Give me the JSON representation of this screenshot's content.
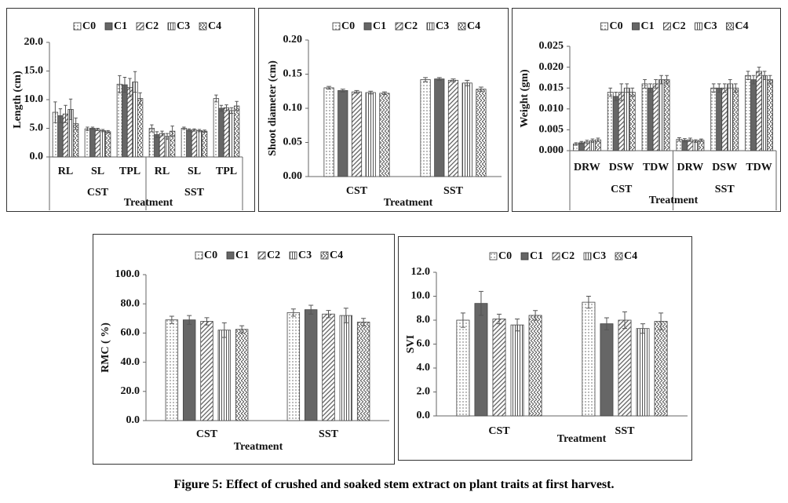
{
  "caption": "Figure 5: Effect of crushed and soaked stem extract on plant traits at first harvest.",
  "chart_data": [
    {
      "type": "bar",
      "ylabel": "Length (cm)",
      "xlabel": "Treatment",
      "categories": [
        "RL",
        "SL",
        "TPL",
        "RL",
        "SL",
        "TPL"
      ],
      "groups": [
        "CST",
        "SST"
      ],
      "ylim": [
        0,
        20
      ],
      "yticks": [
        {
          "value": 0,
          "label": "0.0"
        },
        {
          "value": 5,
          "label": "5.0"
        },
        {
          "value": 10,
          "label": "10.0"
        },
        {
          "value": 15,
          "label": "15.0"
        },
        {
          "value": 20,
          "label": "20.0"
        }
      ],
      "series": [
        {
          "name": "C0",
          "color": "#555555",
          "pattern": "dots",
          "values": [
            7.8,
            4.9,
            12.7,
            5.0,
            5.0,
            10.2
          ],
          "errors": [
            1.8,
            0.3,
            1.5,
            0.6,
            0.2,
            0.6
          ]
        },
        {
          "name": "C1",
          "color": "#666666",
          "pattern": "solid",
          "values": [
            7.2,
            5.0,
            12.6,
            3.9,
            4.7,
            8.5
          ],
          "errors": [
            1.2,
            0.2,
            1.3,
            0.5,
            0.2,
            0.5
          ]
        },
        {
          "name": "C2",
          "color": "#555555",
          "pattern": "diagonal",
          "values": [
            7.5,
            4.8,
            12.1,
            4.1,
            4.7,
            8.6
          ],
          "errors": [
            1.5,
            0.2,
            1.6,
            0.4,
            0.2,
            0.5
          ]
        },
        {
          "name": "C3",
          "color": "#555555",
          "pattern": "vertical",
          "values": [
            8.3,
            4.6,
            13.1,
            3.6,
            4.6,
            8.1
          ],
          "errors": [
            1.8,
            0.2,
            1.8,
            0.5,
            0.2,
            0.5
          ]
        },
        {
          "name": "C4",
          "color": "#555555",
          "pattern": "zigzag",
          "values": [
            5.8,
            4.4,
            10.2,
            4.5,
            4.5,
            8.9
          ],
          "errors": [
            1.0,
            0.2,
            1.0,
            0.9,
            0.2,
            0.8
          ]
        }
      ]
    },
    {
      "type": "bar",
      "ylabel": "Shoot diameter (cm)",
      "xlabel": "Treatment",
      "categories": [
        "CST",
        "SST"
      ],
      "ylim": [
        0,
        0.2
      ],
      "yticks": [
        {
          "value": 0,
          "label": "0.00"
        },
        {
          "value": 0.05,
          "label": "0.05"
        },
        {
          "value": 0.1,
          "label": "0.10"
        },
        {
          "value": 0.15,
          "label": "0.15"
        },
        {
          "value": 0.2,
          "label": "0.20"
        }
      ],
      "series": [
        {
          "name": "C0",
          "color": "#555555",
          "pattern": "dots",
          "values": [
            0.13,
            0.142
          ],
          "errors": [
            0.002,
            0.003
          ]
        },
        {
          "name": "C1",
          "color": "#666666",
          "pattern": "solid",
          "values": [
            0.126,
            0.143
          ],
          "errors": [
            0.002,
            0.002
          ]
        },
        {
          "name": "C2",
          "color": "#555555",
          "pattern": "diagonal",
          "values": [
            0.124,
            0.141
          ],
          "errors": [
            0.002,
            0.002
          ]
        },
        {
          "name": "C3",
          "color": "#555555",
          "pattern": "vertical",
          "values": [
            0.123,
            0.137
          ],
          "errors": [
            0.002,
            0.004
          ]
        },
        {
          "name": "C4",
          "color": "#555555",
          "pattern": "zigzag",
          "values": [
            0.122,
            0.128
          ],
          "errors": [
            0.002,
            0.003
          ]
        }
      ]
    },
    {
      "type": "bar",
      "ylabel": "Weight (gm)",
      "xlabel": "Treatment",
      "categories": [
        "DRW",
        "DSW",
        "TDW",
        "DRW",
        "DSW",
        "TDW"
      ],
      "groups": [
        "CST",
        "SST"
      ],
      "ylim": [
        0,
        0.025
      ],
      "yticks": [
        {
          "value": 0,
          "label": "0.000"
        },
        {
          "value": 0.005,
          "label": "0.005"
        },
        {
          "value": 0.01,
          "label": "0.010"
        },
        {
          "value": 0.015,
          "label": "0.015"
        },
        {
          "value": 0.02,
          "label": "0.020"
        },
        {
          "value": 0.025,
          "label": "0.025"
        }
      ],
      "series": [
        {
          "name": "C0",
          "color": "#555555",
          "pattern": "dots",
          "values": [
            0.0016,
            0.014,
            0.016,
            0.0027,
            0.015,
            0.018
          ],
          "errors": [
            0.0003,
            0.001,
            0.001,
            0.0004,
            0.001,
            0.001
          ]
        },
        {
          "name": "C1",
          "color": "#666666",
          "pattern": "solid",
          "values": [
            0.0019,
            0.013,
            0.015,
            0.0025,
            0.015,
            0.017
          ],
          "errors": [
            0.0003,
            0.001,
            0.001,
            0.0004,
            0.001,
            0.001
          ]
        },
        {
          "name": "C2",
          "color": "#555555",
          "pattern": "diagonal",
          "values": [
            0.0021,
            0.014,
            0.016,
            0.0026,
            0.015,
            0.019
          ],
          "errors": [
            0.0004,
            0.002,
            0.001,
            0.0004,
            0.001,
            0.001
          ]
        },
        {
          "name": "C3",
          "color": "#555555",
          "pattern": "vertical",
          "values": [
            0.0024,
            0.015,
            0.017,
            0.0023,
            0.016,
            0.018
          ],
          "errors": [
            0.0004,
            0.001,
            0.001,
            0.0003,
            0.001,
            0.001
          ]
        },
        {
          "name": "C4",
          "color": "#555555",
          "pattern": "zigzag",
          "values": [
            0.0026,
            0.014,
            0.017,
            0.0025,
            0.015,
            0.017
          ],
          "errors": [
            0.0004,
            0.001,
            0.001,
            0.0003,
            0.001,
            0.001
          ]
        }
      ]
    },
    {
      "type": "bar",
      "ylabel": "RMC ( %)",
      "xlabel": "Treatment",
      "categories": [
        "CST",
        "SST"
      ],
      "ylim": [
        0,
        100
      ],
      "yticks": [
        {
          "value": 0,
          "label": "0.0"
        },
        {
          "value": 20,
          "label": "20.0"
        },
        {
          "value": 40,
          "label": "40.0"
        },
        {
          "value": 60,
          "label": "60.0"
        },
        {
          "value": 80,
          "label": "80.0"
        },
        {
          "value": 100,
          "label": "100.0"
        }
      ],
      "series": [
        {
          "name": "C0",
          "color": "#555555",
          "pattern": "dots",
          "values": [
            69,
            74
          ],
          "errors": [
            2.5,
            2.5
          ]
        },
        {
          "name": "C1",
          "color": "#666666",
          "pattern": "solid",
          "values": [
            69,
            76
          ],
          "errors": [
            3,
            3
          ]
        },
        {
          "name": "C2",
          "color": "#555555",
          "pattern": "diagonal",
          "values": [
            68,
            73
          ],
          "errors": [
            2.5,
            2.5
          ]
        },
        {
          "name": "C3",
          "color": "#555555",
          "pattern": "vertical",
          "values": [
            62,
            72
          ],
          "errors": [
            5,
            5
          ]
        },
        {
          "name": "C4",
          "color": "#555555",
          "pattern": "zigzag",
          "values": [
            62.5,
            67.5
          ],
          "errors": [
            2.5,
            2.5
          ]
        }
      ]
    },
    {
      "type": "bar",
      "ylabel": "SVI",
      "xlabel": "Treatment",
      "categories": [
        "CST",
        "SST"
      ],
      "ylim": [
        0,
        12
      ],
      "yticks": [
        {
          "value": 0,
          "label": "0.0"
        },
        {
          "value": 2,
          "label": "2.0"
        },
        {
          "value": 4,
          "label": "4.0"
        },
        {
          "value": 6,
          "label": "6.0"
        },
        {
          "value": 8,
          "label": "8.0"
        },
        {
          "value": 10,
          "label": "10.0"
        },
        {
          "value": 12,
          "label": "12.0"
        }
      ],
      "series": [
        {
          "name": "C0",
          "color": "#555555",
          "pattern": "dots",
          "values": [
            8.0,
            9.5
          ],
          "errors": [
            0.6,
            0.5
          ]
        },
        {
          "name": "C1",
          "color": "#666666",
          "pattern": "solid",
          "values": [
            9.4,
            7.7
          ],
          "errors": [
            1.0,
            0.5
          ]
        },
        {
          "name": "C2",
          "color": "#555555",
          "pattern": "diagonal",
          "values": [
            8.1,
            8.0
          ],
          "errors": [
            0.4,
            0.7
          ]
        },
        {
          "name": "C3",
          "color": "#555555",
          "pattern": "vertical",
          "values": [
            7.6,
            7.3
          ],
          "errors": [
            0.5,
            0.4
          ]
        },
        {
          "name": "C4",
          "color": "#555555",
          "pattern": "zigzag",
          "values": [
            8.4,
            7.9
          ],
          "errors": [
            0.4,
            0.7
          ]
        }
      ]
    }
  ]
}
